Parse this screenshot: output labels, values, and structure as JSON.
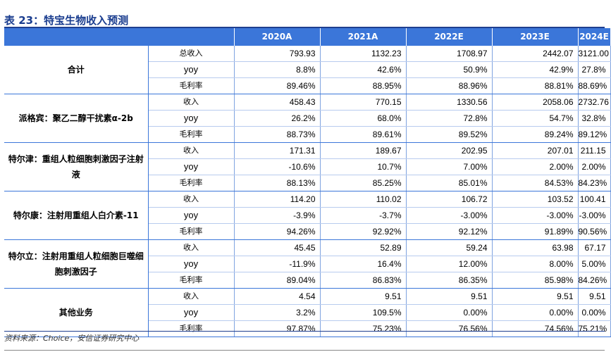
{
  "title": "表 23：特宝生物收入预测",
  "header": {
    "blank": "",
    "years": [
      "2020A",
      "2021A",
      "2022E",
      "2023E",
      "2024E"
    ]
  },
  "segments": [
    {
      "name": "合计",
      "rows": [
        {
          "metric": "总收入",
          "values": [
            "793.93",
            "1132.23",
            "1708.97",
            "2442.07",
            "3121.00"
          ]
        },
        {
          "metric": "yoy",
          "values": [
            "8.8%",
            "42.6%",
            "50.9%",
            "42.9%",
            "27.8%"
          ]
        },
        {
          "metric": "毛利率",
          "values": [
            "89.46%",
            "88.95%",
            "88.96%",
            "88.81%",
            "88.69%"
          ]
        }
      ]
    },
    {
      "name": "派格宾：聚乙二醇干扰素α-2b",
      "rows": [
        {
          "metric": "收入",
          "values": [
            "458.43",
            "770.15",
            "1330.56",
            "2058.06",
            "2732.76"
          ]
        },
        {
          "metric": "yoy",
          "values": [
            "26.2%",
            "68.0%",
            "72.8%",
            "54.7%",
            "32.8%"
          ]
        },
        {
          "metric": "毛利率",
          "values": [
            "88.73%",
            "89.61%",
            "89.52%",
            "89.24%",
            "89.12%"
          ]
        }
      ]
    },
    {
      "name": "特尔津：重组人粒细胞刺激因子注射液",
      "rows": [
        {
          "metric": "收入",
          "values": [
            "171.31",
            "189.67",
            "202.95",
            "207.01",
            "211.15"
          ]
        },
        {
          "metric": "yoy",
          "values": [
            "-10.6%",
            "10.7%",
            "7.00%",
            "2.00%",
            "2.00%"
          ]
        },
        {
          "metric": "毛利率",
          "values": [
            "88.13%",
            "85.25%",
            "85.01%",
            "84.53%",
            "84.23%"
          ]
        }
      ]
    },
    {
      "name": "特尔康：注射用重组人白介素-11",
      "rows": [
        {
          "metric": "收入",
          "values": [
            "114.20",
            "110.02",
            "106.72",
            "103.52",
            "100.41"
          ]
        },
        {
          "metric": "yoy",
          "values": [
            "-3.9%",
            "-3.7%",
            "-3.00%",
            "-3.00%",
            "-3.00%"
          ]
        },
        {
          "metric": "毛利率",
          "values": [
            "94.26%",
            "92.92%",
            "92.12%",
            "91.89%",
            "90.56%"
          ]
        }
      ]
    },
    {
      "name": "特尔立：注射用重组人粒细胞巨噬细胞刺激因子",
      "rows": [
        {
          "metric": "收入",
          "values": [
            "45.45",
            "52.89",
            "59.24",
            "63.98",
            "67.17"
          ]
        },
        {
          "metric": "yoy",
          "values": [
            "-11.9%",
            "16.4%",
            "12.00%",
            "8.00%",
            "5.00%"
          ]
        },
        {
          "metric": "毛利率",
          "values": [
            "89.04%",
            "86.83%",
            "86.35%",
            "85.98%",
            "84.26%"
          ]
        }
      ]
    },
    {
      "name": "其他业务",
      "rows": [
        {
          "metric": "收入",
          "values": [
            "4.54",
            "9.51",
            "9.51",
            "9.51",
            "9.51"
          ]
        },
        {
          "metric": "yoy",
          "values": [
            "3.2%",
            "109.5%",
            "0.00%",
            "0.00%",
            "0.00%"
          ]
        },
        {
          "metric": "毛利率",
          "values": [
            "97.87%",
            "75.23%",
            "76.56%",
            "74.56%",
            "75.21%"
          ]
        }
      ]
    }
  ],
  "source": "资料来源：Choice，安信证券研究中心"
}
